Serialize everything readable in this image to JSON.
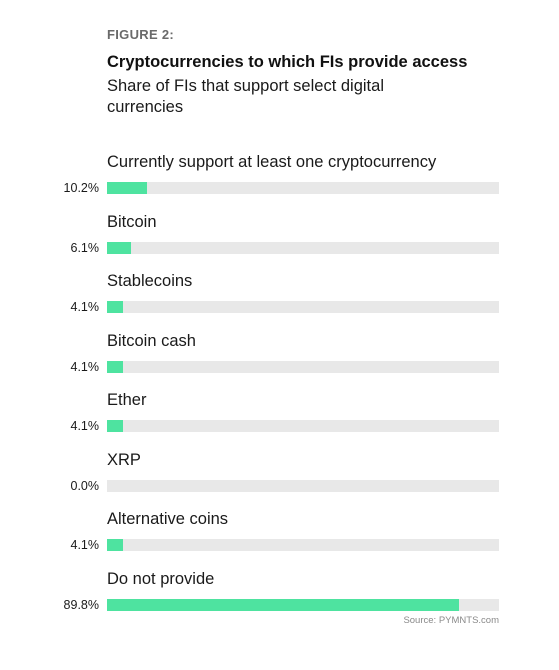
{
  "figure_label": "FIGURE 2:",
  "colors": {
    "bar_fill": "#4ee3a0",
    "bar_track": "#e8e8e8"
  },
  "source": "Source: PYMNTS.com",
  "chart_data": {
    "type": "bar",
    "orientation": "horizontal",
    "title": "Cryptocurrencies to which FIs provide access",
    "subtitle": "Share of FIs that support select digital currencies",
    "unit": "%",
    "xlim": [
      0,
      100
    ],
    "grid": false,
    "categories": [
      "Currently support at least one cryptocurrency",
      "Bitcoin",
      "Stablecoins",
      "Bitcoin cash",
      "Ether",
      "XRP",
      "Alternative coins",
      "Do not provide"
    ],
    "values": [
      10.2,
      6.1,
      4.1,
      4.1,
      4.1,
      0.0,
      4.1,
      89.8
    ],
    "value_labels": [
      "10.2%",
      "6.1%",
      "4.1%",
      "4.1%",
      "4.1%",
      "0.0%",
      "4.1%",
      "89.8%"
    ]
  }
}
